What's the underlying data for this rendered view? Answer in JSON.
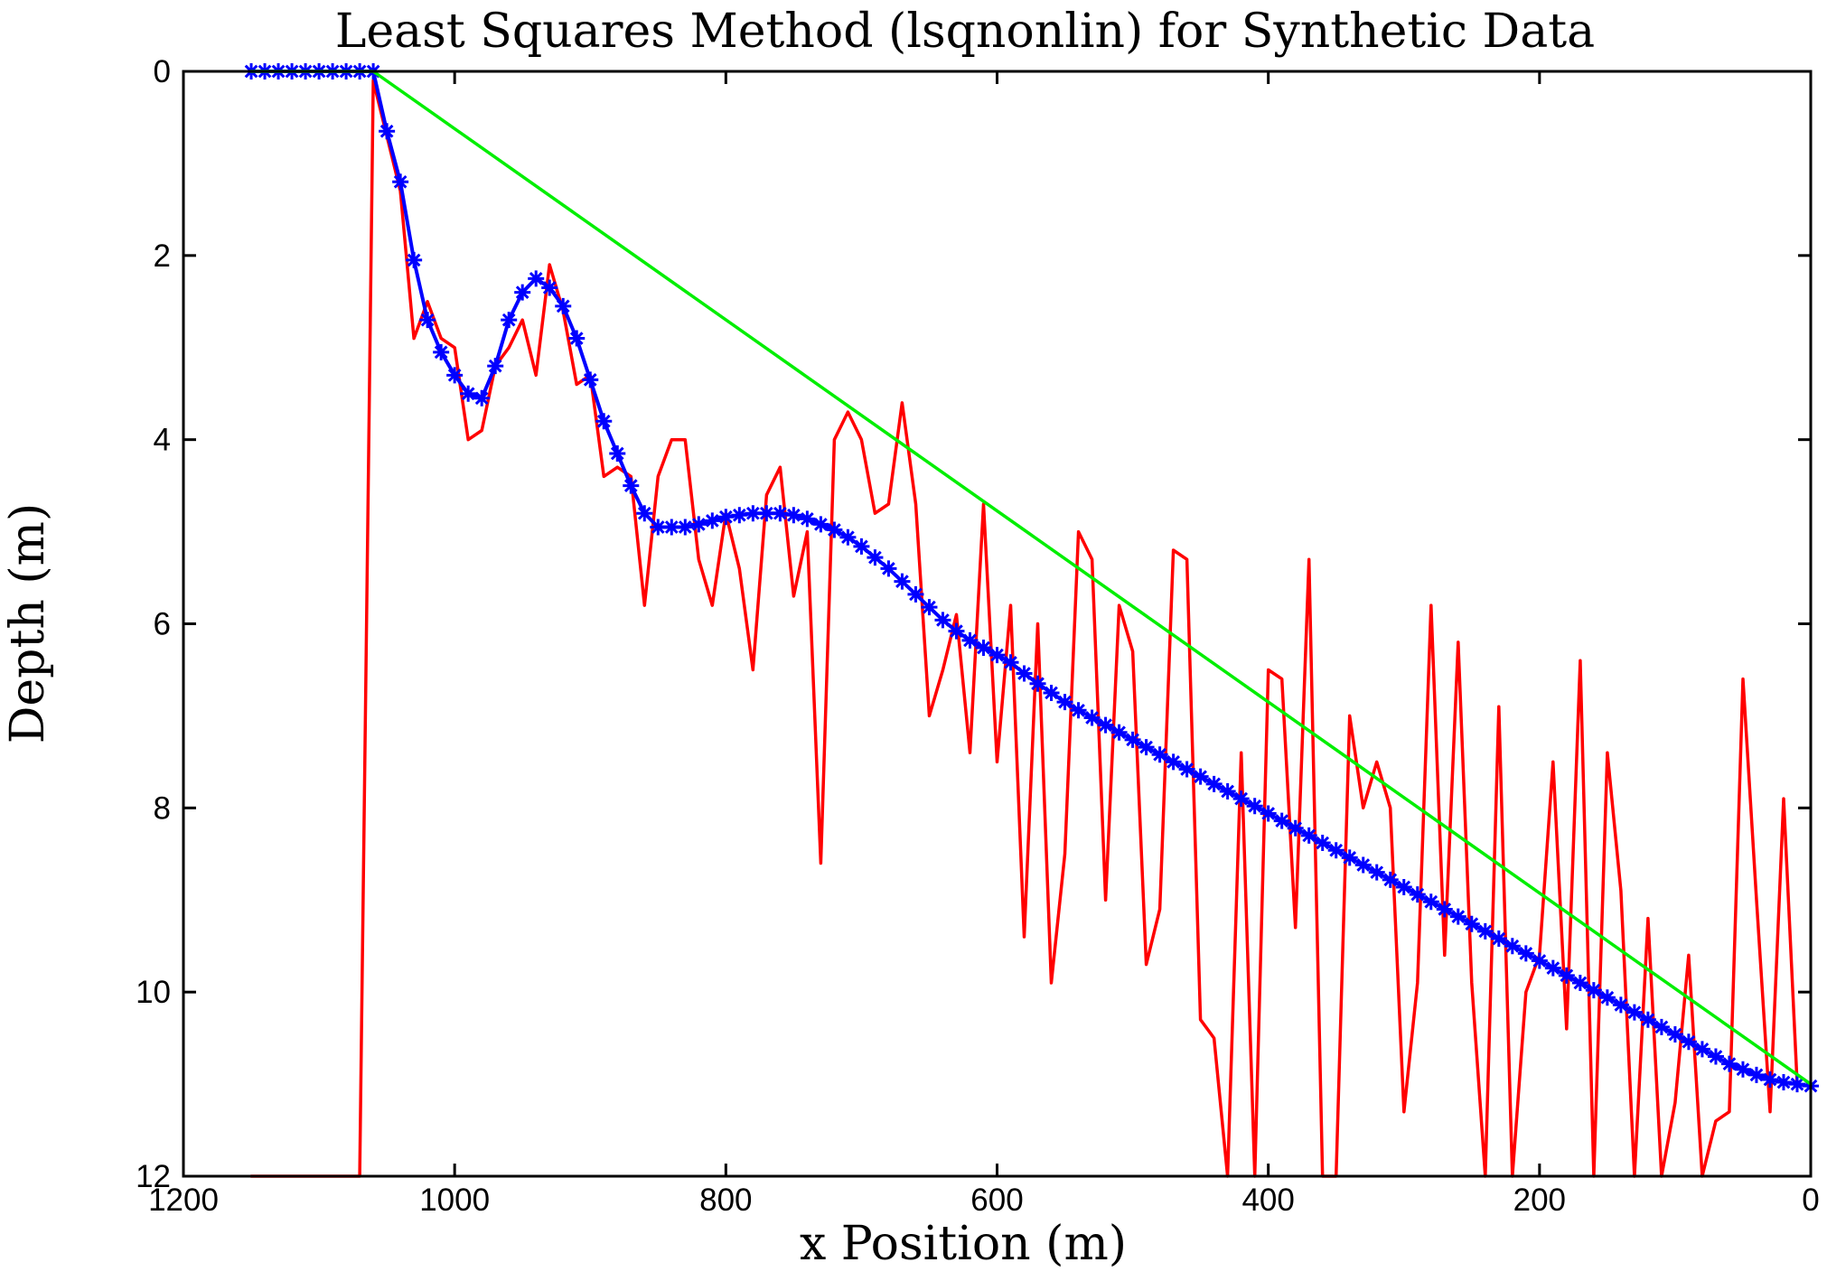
{
  "chart_data": {
    "type": "line",
    "title": "Least Squares Method (lsqnonlin) for Synthetic Data",
    "xlabel": "x Position (m)",
    "ylabel": "Depth (m)",
    "xlim": [
      1200,
      0
    ],
    "ylim": [
      12,
      0
    ],
    "x_reversed": true,
    "y_reversed": true,
    "xticks": [
      1200,
      1000,
      800,
      600,
      400,
      200,
      0
    ],
    "yticks": [
      0,
      2,
      4,
      6,
      8,
      10,
      12
    ],
    "grid": false,
    "legend": "none",
    "series": [
      {
        "color": "#ff0000",
        "style": "line",
        "points": [
          [
            1150,
            12
          ],
          [
            1070,
            12
          ],
          [
            1060,
            0.1
          ],
          [
            1040,
            1.3
          ],
          [
            1030,
            2.9
          ],
          [
            1020,
            2.5
          ],
          [
            1010,
            2.9
          ],
          [
            1000,
            3.0
          ],
          [
            990,
            4.0
          ],
          [
            980,
            3.9
          ],
          [
            970,
            3.2
          ],
          [
            960,
            3.0
          ],
          [
            950,
            2.7
          ],
          [
            940,
            3.3
          ],
          [
            930,
            2.1
          ],
          [
            920,
            2.6
          ],
          [
            910,
            3.4
          ],
          [
            900,
            3.3
          ],
          [
            890,
            4.4
          ],
          [
            880,
            4.3
          ],
          [
            870,
            4.4
          ],
          [
            860,
            5.8
          ],
          [
            850,
            4.4
          ],
          [
            840,
            4.0
          ],
          [
            830,
            4.0
          ],
          [
            820,
            5.3
          ],
          [
            810,
            5.8
          ],
          [
            800,
            4.8
          ],
          [
            790,
            5.4
          ],
          [
            780,
            6.5
          ],
          [
            770,
            4.6
          ],
          [
            760,
            4.3
          ],
          [
            750,
            5.7
          ],
          [
            740,
            5.0
          ],
          [
            730,
            8.6
          ],
          [
            720,
            4.0
          ],
          [
            710,
            3.7
          ],
          [
            700,
            4.0
          ],
          [
            690,
            4.8
          ],
          [
            680,
            4.7
          ],
          [
            670,
            3.6
          ],
          [
            660,
            4.7
          ],
          [
            650,
            7.0
          ],
          [
            640,
            6.5
          ],
          [
            630,
            5.9
          ],
          [
            620,
            7.4
          ],
          [
            610,
            4.7
          ],
          [
            600,
            7.5
          ],
          [
            590,
            5.8
          ],
          [
            580,
            9.4
          ],
          [
            570,
            6.0
          ],
          [
            560,
            9.9
          ],
          [
            550,
            8.5
          ],
          [
            540,
            5.0
          ],
          [
            530,
            5.3
          ],
          [
            520,
            9.0
          ],
          [
            510,
            5.8
          ],
          [
            500,
            6.3
          ],
          [
            490,
            9.7
          ],
          [
            480,
            9.1
          ],
          [
            470,
            5.2
          ],
          [
            460,
            5.3
          ],
          [
            450,
            10.3
          ],
          [
            440,
            10.5
          ],
          [
            430,
            12.0
          ],
          [
            420,
            7.4
          ],
          [
            410,
            12.0
          ],
          [
            400,
            6.5
          ],
          [
            390,
            6.6
          ],
          [
            380,
            9.3
          ],
          [
            370,
            5.3
          ],
          [
            360,
            12.0
          ],
          [
            350,
            12.0
          ],
          [
            340,
            7.0
          ],
          [
            330,
            8.0
          ],
          [
            320,
            7.5
          ],
          [
            310,
            8.0
          ],
          [
            300,
            11.3
          ],
          [
            290,
            9.9
          ],
          [
            280,
            5.8
          ],
          [
            270,
            9.6
          ],
          [
            260,
            6.2
          ],
          [
            250,
            9.9
          ],
          [
            240,
            12.0
          ],
          [
            230,
            6.9
          ],
          [
            220,
            12.0
          ],
          [
            210,
            10.0
          ],
          [
            200,
            9.6
          ],
          [
            190,
            7.5
          ],
          [
            180,
            10.4
          ],
          [
            170,
            6.4
          ],
          [
            160,
            12.0
          ],
          [
            150,
            7.4
          ],
          [
            140,
            8.9
          ],
          [
            130,
            12.0
          ],
          [
            120,
            9.2
          ],
          [
            110,
            12.0
          ],
          [
            100,
            11.2
          ],
          [
            90,
            9.6
          ],
          [
            80,
            12.0
          ],
          [
            70,
            11.4
          ],
          [
            60,
            11.3
          ],
          [
            50,
            6.6
          ],
          [
            40,
            9.0
          ],
          [
            30,
            11.3
          ],
          [
            20,
            7.9
          ],
          [
            10,
            11.0
          ]
        ]
      },
      {
        "color": "#0000ff",
        "style": "line-asterisk",
        "points": [
          [
            1150,
            0
          ],
          [
            1140,
            0
          ],
          [
            1130,
            0
          ],
          [
            1120,
            0
          ],
          [
            1110,
            0
          ],
          [
            1100,
            0
          ],
          [
            1090,
            0
          ],
          [
            1080,
            0
          ],
          [
            1070,
            0
          ],
          [
            1060,
            0
          ],
          [
            1050,
            0.65
          ],
          [
            1040,
            1.2
          ],
          [
            1030,
            2.05
          ],
          [
            1020,
            2.7
          ],
          [
            1010,
            3.05
          ],
          [
            1000,
            3.3
          ],
          [
            990,
            3.5
          ],
          [
            980,
            3.55
          ],
          [
            970,
            3.2
          ],
          [
            960,
            2.7
          ],
          [
            950,
            2.4
          ],
          [
            940,
            2.25
          ],
          [
            930,
            2.35
          ],
          [
            920,
            2.55
          ],
          [
            910,
            2.9
          ],
          [
            900,
            3.35
          ],
          [
            890,
            3.8
          ],
          [
            880,
            4.15
          ],
          [
            870,
            4.5
          ],
          [
            860,
            4.8
          ],
          [
            850,
            4.95
          ],
          [
            840,
            4.95
          ],
          [
            830,
            4.95
          ],
          [
            820,
            4.92
          ],
          [
            810,
            4.88
          ],
          [
            800,
            4.84
          ],
          [
            790,
            4.82
          ],
          [
            780,
            4.8
          ],
          [
            770,
            4.8
          ],
          [
            760,
            4.8
          ],
          [
            750,
            4.82
          ],
          [
            740,
            4.86
          ],
          [
            730,
            4.92
          ],
          [
            720,
            4.98
          ],
          [
            710,
            5.06
          ],
          [
            700,
            5.16
          ],
          [
            690,
            5.28
          ],
          [
            680,
            5.4
          ],
          [
            670,
            5.54
          ],
          [
            660,
            5.68
          ],
          [
            650,
            5.82
          ],
          [
            640,
            5.96
          ],
          [
            630,
            6.08
          ],
          [
            620,
            6.18
          ],
          [
            610,
            6.26
          ],
          [
            600,
            6.34
          ],
          [
            590,
            6.42
          ],
          [
            580,
            6.54
          ],
          [
            570,
            6.65
          ],
          [
            560,
            6.75
          ],
          [
            550,
            6.85
          ],
          [
            540,
            6.94
          ],
          [
            530,
            7.02
          ],
          [
            520,
            7.1
          ],
          [
            510,
            7.18
          ],
          [
            500,
            7.26
          ],
          [
            490,
            7.34
          ],
          [
            480,
            7.42
          ],
          [
            470,
            7.5
          ],
          [
            460,
            7.58
          ],
          [
            450,
            7.66
          ],
          [
            440,
            7.74
          ],
          [
            430,
            7.82
          ],
          [
            420,
            7.9
          ],
          [
            410,
            7.98
          ],
          [
            400,
            8.06
          ],
          [
            390,
            8.14
          ],
          [
            380,
            8.22
          ],
          [
            370,
            8.3
          ],
          [
            360,
            8.38
          ],
          [
            350,
            8.46
          ],
          [
            340,
            8.54
          ],
          [
            330,
            8.62
          ],
          [
            320,
            8.7
          ],
          [
            310,
            8.78
          ],
          [
            300,
            8.86
          ],
          [
            290,
            8.94
          ],
          [
            280,
            9.02
          ],
          [
            270,
            9.1
          ],
          [
            260,
            9.18
          ],
          [
            250,
            9.26
          ],
          [
            240,
            9.34
          ],
          [
            230,
            9.42
          ],
          [
            220,
            9.5
          ],
          [
            210,
            9.58
          ],
          [
            200,
            9.66
          ],
          [
            190,
            9.74
          ],
          [
            180,
            9.82
          ],
          [
            170,
            9.9
          ],
          [
            160,
            9.98
          ],
          [
            150,
            10.06
          ],
          [
            140,
            10.14
          ],
          [
            130,
            10.22
          ],
          [
            120,
            10.3
          ],
          [
            110,
            10.38
          ],
          [
            100,
            10.46
          ],
          [
            90,
            10.54
          ],
          [
            80,
            10.62
          ],
          [
            70,
            10.7
          ],
          [
            60,
            10.78
          ],
          [
            50,
            10.84
          ],
          [
            40,
            10.9
          ],
          [
            30,
            10.95
          ],
          [
            20,
            10.98
          ],
          [
            10,
            11.0
          ],
          [
            0,
            11.02
          ]
        ]
      },
      {
        "color": "#00ee00",
        "style": "line",
        "points": [
          [
            1150,
            0
          ],
          [
            1060,
            0
          ],
          [
            0,
            11.0
          ]
        ]
      }
    ]
  }
}
